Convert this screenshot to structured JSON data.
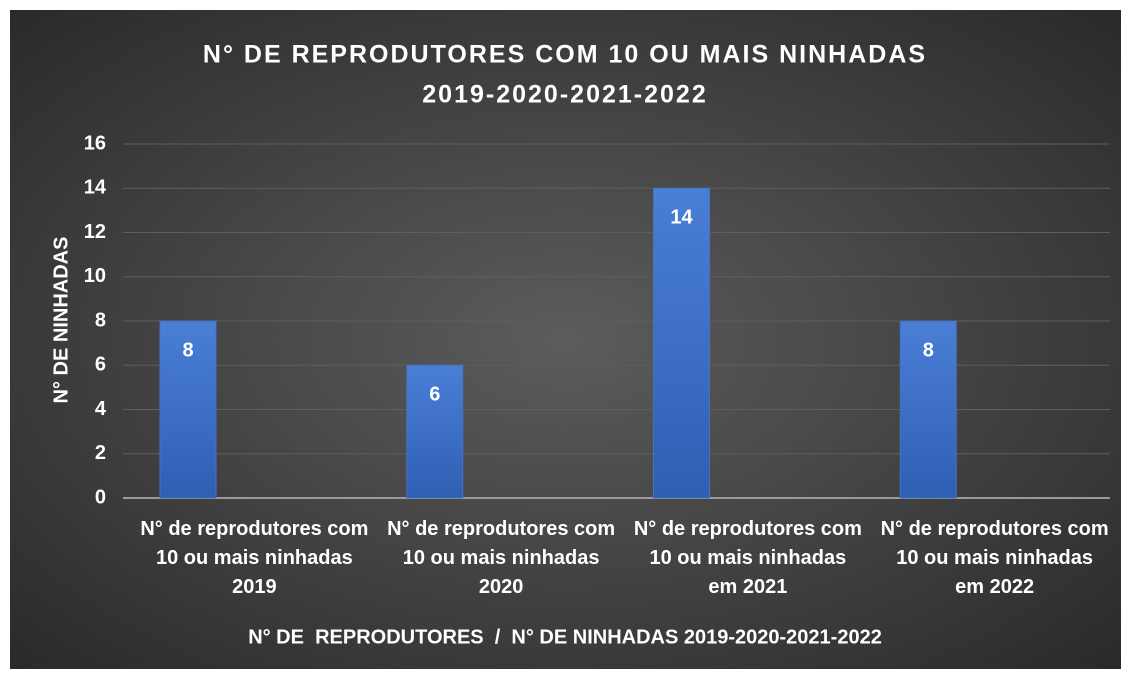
{
  "chart_data": {
    "type": "bar",
    "title": [
      "N° DE REPRODUTORES COM 10 OU MAIS NINHADAS",
      "2019-2020-2021-2022"
    ],
    "x_label": "N° DE  REPRODUTORES  /  N° DE NINHADAS 2019-2020-2021-2022",
    "y_label": "N° DE NINHADAS",
    "categories": [
      "N° de reprodutores com 10 ou mais ninhadas 2019",
      "N° de reprodutores com 10 ou mais ninhadas 2020",
      "N° de reprodutores com 10 ou mais ninhadas em 2021",
      "N° de reprodutores com 10 ou mais ninhadas em 2022"
    ],
    "values": [
      8,
      6,
      14,
      8
    ],
    "color": "#4472c4",
    "ylim": [
      0,
      16
    ],
    "yticks": [
      0,
      2,
      4,
      6,
      8,
      10,
      12,
      14,
      16
    ],
    "grid": true
  }
}
